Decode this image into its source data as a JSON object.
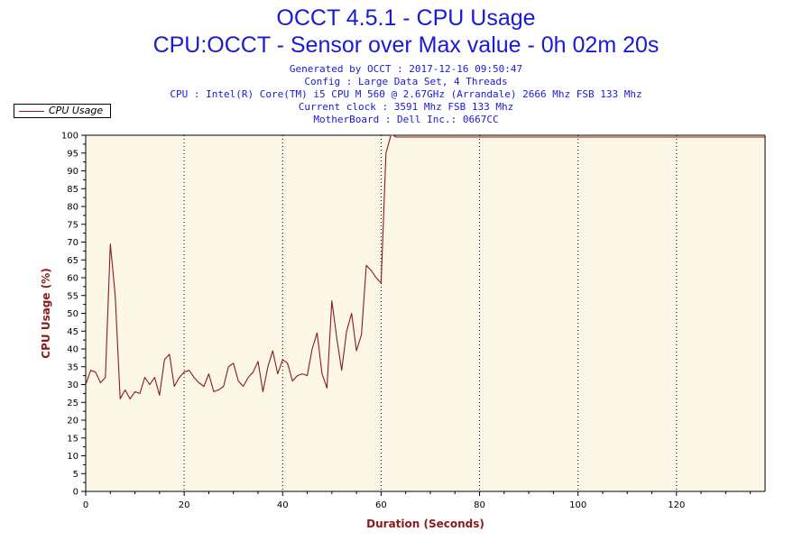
{
  "header": {
    "title": "OCCT 4.5.1 - CPU Usage",
    "subtitle": "CPU:OCCT - Sensor over Max value - 0h 02m 20s",
    "info_lines": [
      "Generated by OCCT : 2017-12-16 09:50:47",
      "Config : Large Data Set, 4 Threads",
      "CPU : Intel(R) Core(TM) i5 CPU M 560 @ 2.67GHz (Arrandale) 2666 Mhz FSB 133 Mhz",
      "Current clock : 3591 Mhz FSB 133 Mhz",
      "MotherBoard : Dell Inc.: 0667CC"
    ]
  },
  "colors": {
    "title": "#1a1ad6",
    "axis_label": "#8b1a1a",
    "series": "#8b1a1a",
    "plot_bg": "#fdf7e8"
  },
  "chart_data": {
    "type": "line",
    "xlabel": "Duration (Seconds)",
    "ylabel": "CPU Usage (%)",
    "xlim": [
      0,
      138
    ],
    "ylim": [
      0,
      100
    ],
    "xticks": [
      0,
      20,
      40,
      60,
      80,
      100,
      120
    ],
    "yticks": [
      0,
      5,
      10,
      15,
      20,
      25,
      30,
      35,
      40,
      45,
      50,
      55,
      60,
      65,
      70,
      75,
      80,
      85,
      90,
      95,
      100
    ],
    "grid": "vertical-dotted",
    "legend": "top-left",
    "series": [
      {
        "name": "CPU Usage",
        "x": [
          0,
          1,
          2,
          3,
          4,
          5,
          6,
          7,
          8,
          9,
          10,
          11,
          12,
          13,
          14,
          15,
          16,
          17,
          18,
          19,
          20,
          21,
          22,
          23,
          24,
          25,
          26,
          27,
          28,
          29,
          30,
          31,
          32,
          33,
          34,
          35,
          36,
          37,
          38,
          39,
          40,
          41,
          42,
          43,
          44,
          45,
          46,
          47,
          48,
          49,
          50,
          51,
          52,
          53,
          54,
          55,
          56,
          57,
          58,
          59,
          60,
          61,
          62,
          62.5,
          63,
          64,
          66,
          80,
          100,
          120,
          138
        ],
        "y": [
          30,
          34,
          33.5,
          30.5,
          32,
          69.5,
          55,
          26,
          28.5,
          26,
          28,
          27.5,
          32,
          30,
          32,
          27,
          37,
          38.5,
          29.5,
          32,
          33.5,
          34,
          32,
          30.5,
          29.5,
          33,
          28,
          28.5,
          29.5,
          35,
          36,
          31,
          29.5,
          32,
          33.5,
          36.5,
          28,
          35,
          39.5,
          33,
          37,
          36,
          31,
          32.5,
          33,
          32.5,
          40,
          44.5,
          33,
          29,
          53.5,
          43,
          34,
          45,
          50,
          39.5,
          44,
          63.5,
          62,
          60,
          58.5,
          95,
          100,
          100,
          99.5,
          99.5,
          99.5,
          99.5,
          99.5,
          99.5,
          99.5
        ]
      }
    ]
  }
}
